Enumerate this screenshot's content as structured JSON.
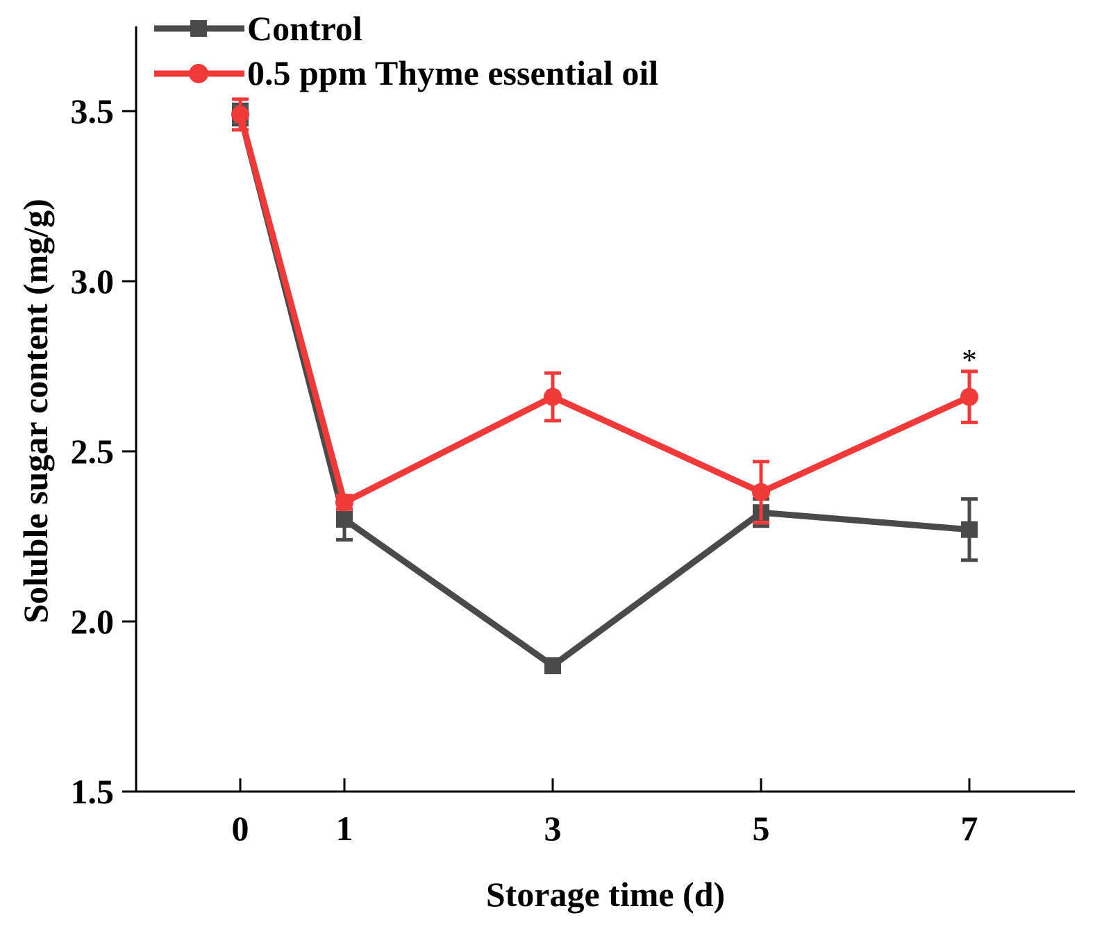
{
  "chart_data": {
    "type": "line",
    "title": "",
    "xlabel": "Storage time (d)",
    "ylabel": "Soluble sugar content (mg/g)",
    "x": [
      0,
      1,
      3,
      5,
      7
    ],
    "x_tick_labels": [
      "0",
      "1",
      "3",
      "5",
      "7"
    ],
    "ylim": [
      1.5,
      3.75
    ],
    "y_ticks": [
      1.5,
      2.0,
      2.5,
      3.0,
      3.5
    ],
    "y_tick_labels": [
      "1.5",
      "2.0",
      "2.5",
      "3.0",
      "3.5"
    ],
    "grid": false,
    "legend_position": "top-left",
    "series": [
      {
        "name": "Control",
        "marker": "square",
        "color": "#4a4a4a",
        "values": [
          3.49,
          2.3,
          1.87,
          2.32,
          2.27
        ],
        "errors": [
          0.03,
          0.06,
          0.02,
          0.04,
          0.09
        ]
      },
      {
        "name": "0.5 ppm Thyme essential oil",
        "marker": "circle",
        "color": "#f03a3a",
        "values": [
          3.49,
          2.35,
          2.66,
          2.38,
          2.66
        ],
        "errors": [
          0.045,
          0.02,
          0.07,
          0.09,
          0.075
        ]
      }
    ],
    "annotations": [
      {
        "text": "*",
        "x": 7,
        "series": "0.5 ppm Thyme essential oil"
      }
    ]
  }
}
